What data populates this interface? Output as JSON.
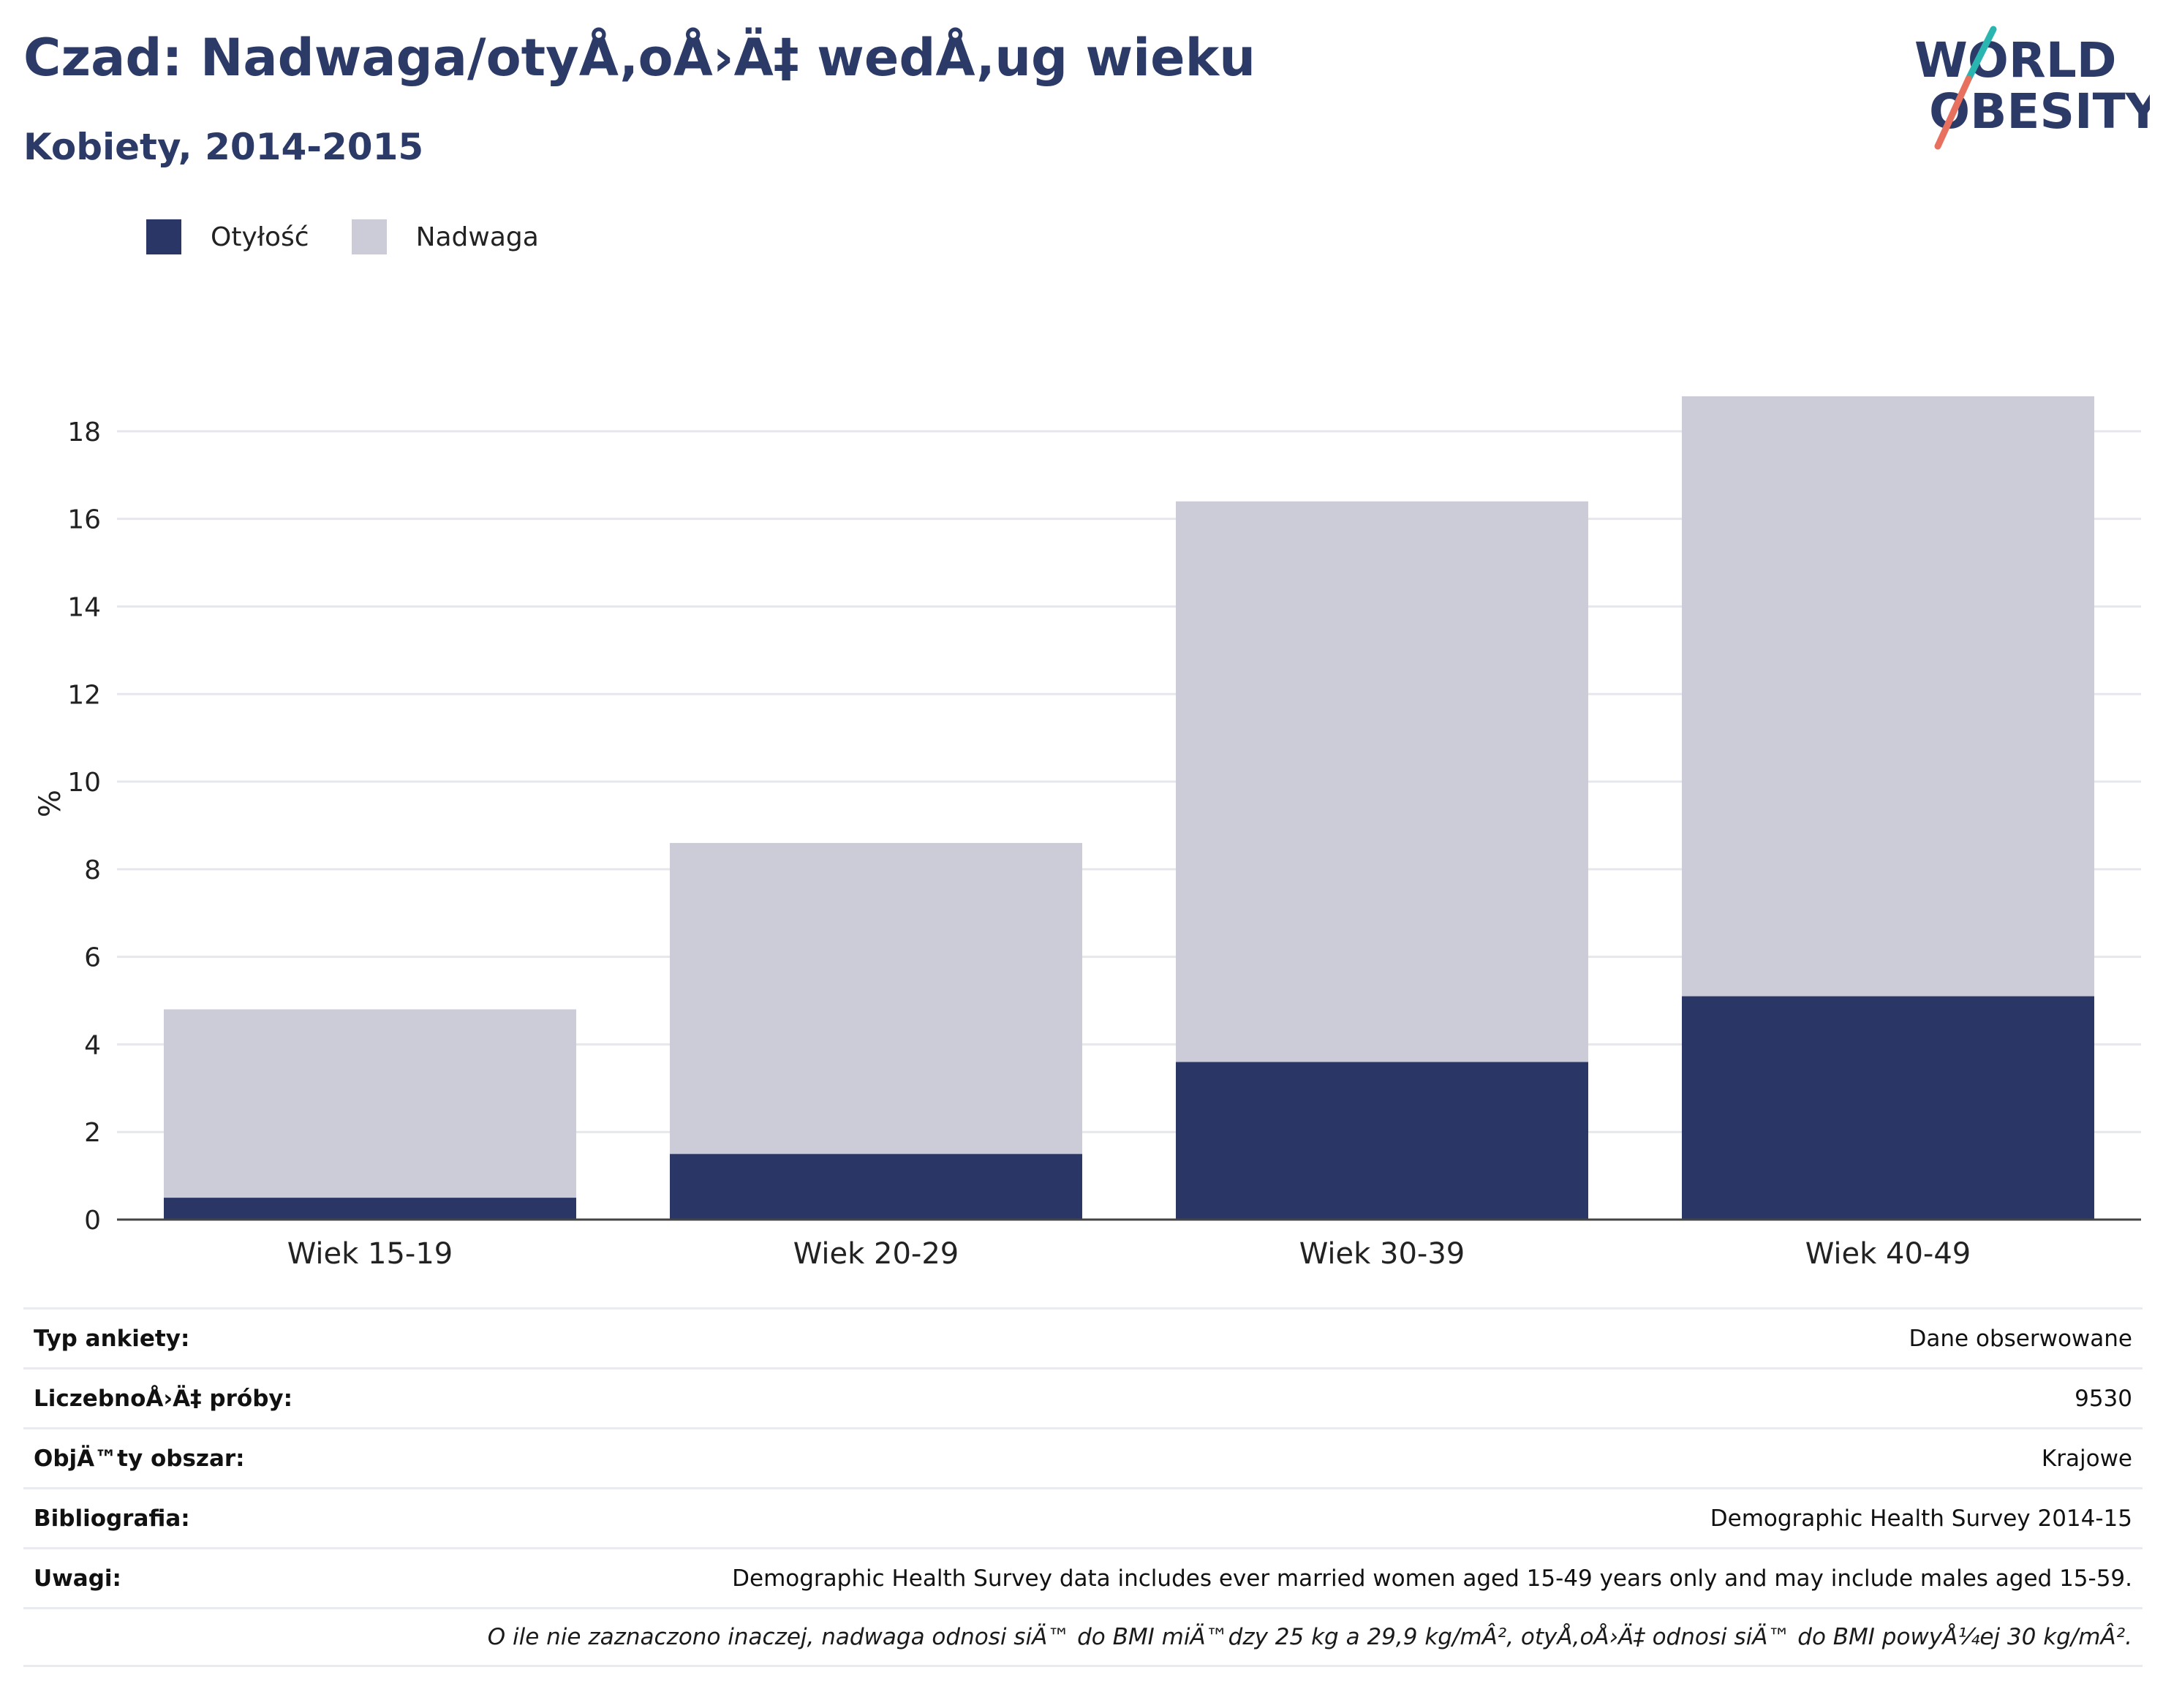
{
  "title": "Czad: Nadwaga/otyÅ‚oÅ›Ä‡ wedÅ‚ug wieku",
  "subtitle": "Kobiety, 2014-2015",
  "logo": {
    "line1": "WORLD",
    "line2": "OBESITY",
    "accent_teal": "#2bb5b1",
    "accent_coral": "#e8705f"
  },
  "colors": {
    "obesity": "#2a3665",
    "overweight": "#cbccd8",
    "text": "#2b3a67"
  },
  "chart_data": {
    "type": "bar",
    "stacked": true,
    "categories": [
      "Wiek 15-19",
      "Wiek 20-29",
      "Wiek 30-39",
      "Wiek 40-49"
    ],
    "series": [
      {
        "name": "Otyłość",
        "values": [
          0.5,
          1.5,
          3.6,
          5.1
        ]
      },
      {
        "name": "Nadwaga",
        "values": [
          4.3,
          7.1,
          12.8,
          13.7
        ]
      }
    ],
    "ylabel": "%",
    "ylim": [
      0,
      19
    ],
    "yticks": [
      0,
      2,
      4,
      6,
      8,
      10,
      12,
      14,
      16,
      18
    ],
    "grid": true,
    "legend": "top-left"
  },
  "meta": [
    {
      "key": "Typ ankiety:",
      "value": "Dane obserwowane"
    },
    {
      "key": "LiczebnoÅ›Ä‡ próby:",
      "value": "9530"
    },
    {
      "key": "ObjÄ™ty obszar:",
      "value": "Krajowe"
    },
    {
      "key": "Bibliografia:",
      "value": "Demographic Health Survey 2014-15"
    },
    {
      "key": "Uwagi:",
      "value": "Demographic Health Survey data includes ever married women aged 15-49 years only and may include males aged 15-59."
    }
  ],
  "footnote": "O ile nie zaznaczono inaczej, nadwaga odnosi siÄ™ do BMI miÄ™dzy 25 kg a 29,9 kg/mÂ², otyÅ‚oÅ›Ä‡ odnosi siÄ™ do BMI powyÅ¼ej 30 kg/mÂ²."
}
